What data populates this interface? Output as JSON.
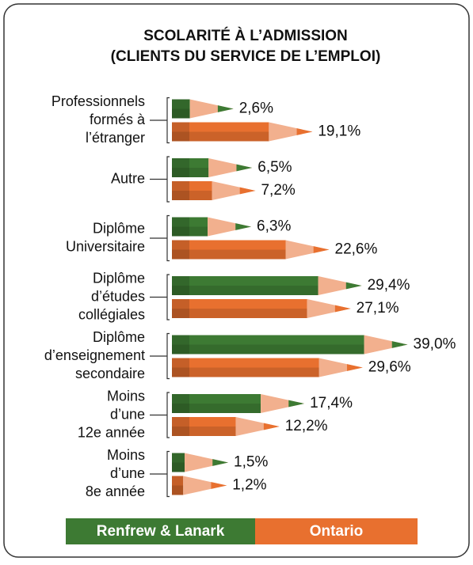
{
  "chart_data": {
    "type": "pencil-bar",
    "title": "SCOLARITÉ À L’ADMISSION",
    "subtitle": "(CLIENTS DU SERVICE DE L’EMPLOI)",
    "categories": [
      [
        "Professionnels",
        "formés à",
        "l’étranger"
      ],
      [
        "Autre"
      ],
      [
        "Diplôme",
        "Universitaire"
      ],
      [
        "Diplôme",
        "d’études",
        "collégiales"
      ],
      [
        "Diplôme",
        "d’enseignement",
        "secondaire"
      ],
      [
        "Moins",
        "d’une",
        "12e année"
      ],
      [
        "Moins",
        "d’une",
        "8e année"
      ]
    ],
    "series": [
      {
        "name": "Renfrew & Lanark",
        "color": "#3d7a33",
        "values": [
          2.6,
          6.5,
          6.3,
          29.4,
          39.0,
          17.4,
          1.5
        ],
        "value_labels": [
          "2,6%",
          "6,5%",
          "6,3%",
          "29,4%",
          "39,0%",
          "17,4%",
          "1,5%"
        ]
      },
      {
        "name": "Ontario",
        "color": "#e8702f",
        "values": [
          19.1,
          7.2,
          22.6,
          27.1,
          29.6,
          12.2,
          1.2
        ],
        "value_labels": [
          "19,1%",
          "7,2%",
          "22,6%",
          "27,1%",
          "29,6%",
          "12,2%",
          "1,2%"
        ]
      }
    ]
  }
}
